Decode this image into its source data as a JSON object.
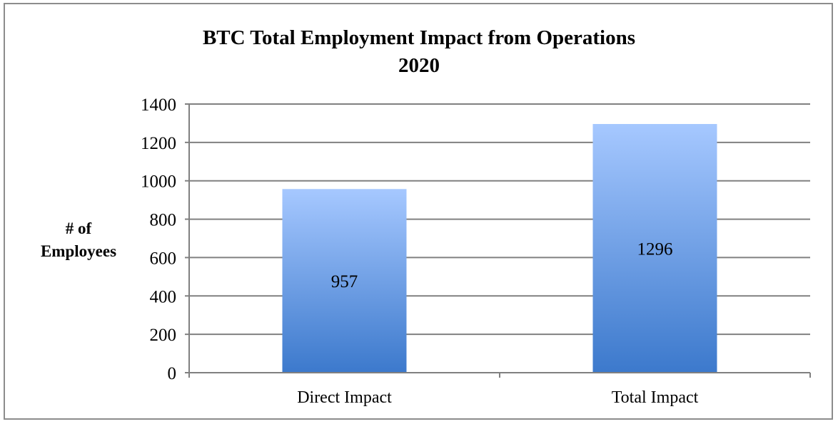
{
  "chart_data": {
    "type": "bar",
    "title": "BTC Total Employment Impact from Operations",
    "subtitle": "2020",
    "ylabel_line1": "# of",
    "ylabel_line2": "Employees",
    "xlabel": "",
    "categories": [
      "Direct Impact",
      "Total Impact"
    ],
    "values": [
      957,
      1296
    ],
    "data_labels": [
      "957",
      "1296"
    ],
    "ylim": [
      0,
      1400
    ],
    "yticks": [
      0,
      200,
      400,
      600,
      800,
      1000,
      1200,
      1400
    ],
    "grid": true,
    "legend": "none",
    "bar_color_top": "#a6c8ff",
    "bar_color_bottom": "#3c79cc",
    "grid_color": "#808080"
  }
}
